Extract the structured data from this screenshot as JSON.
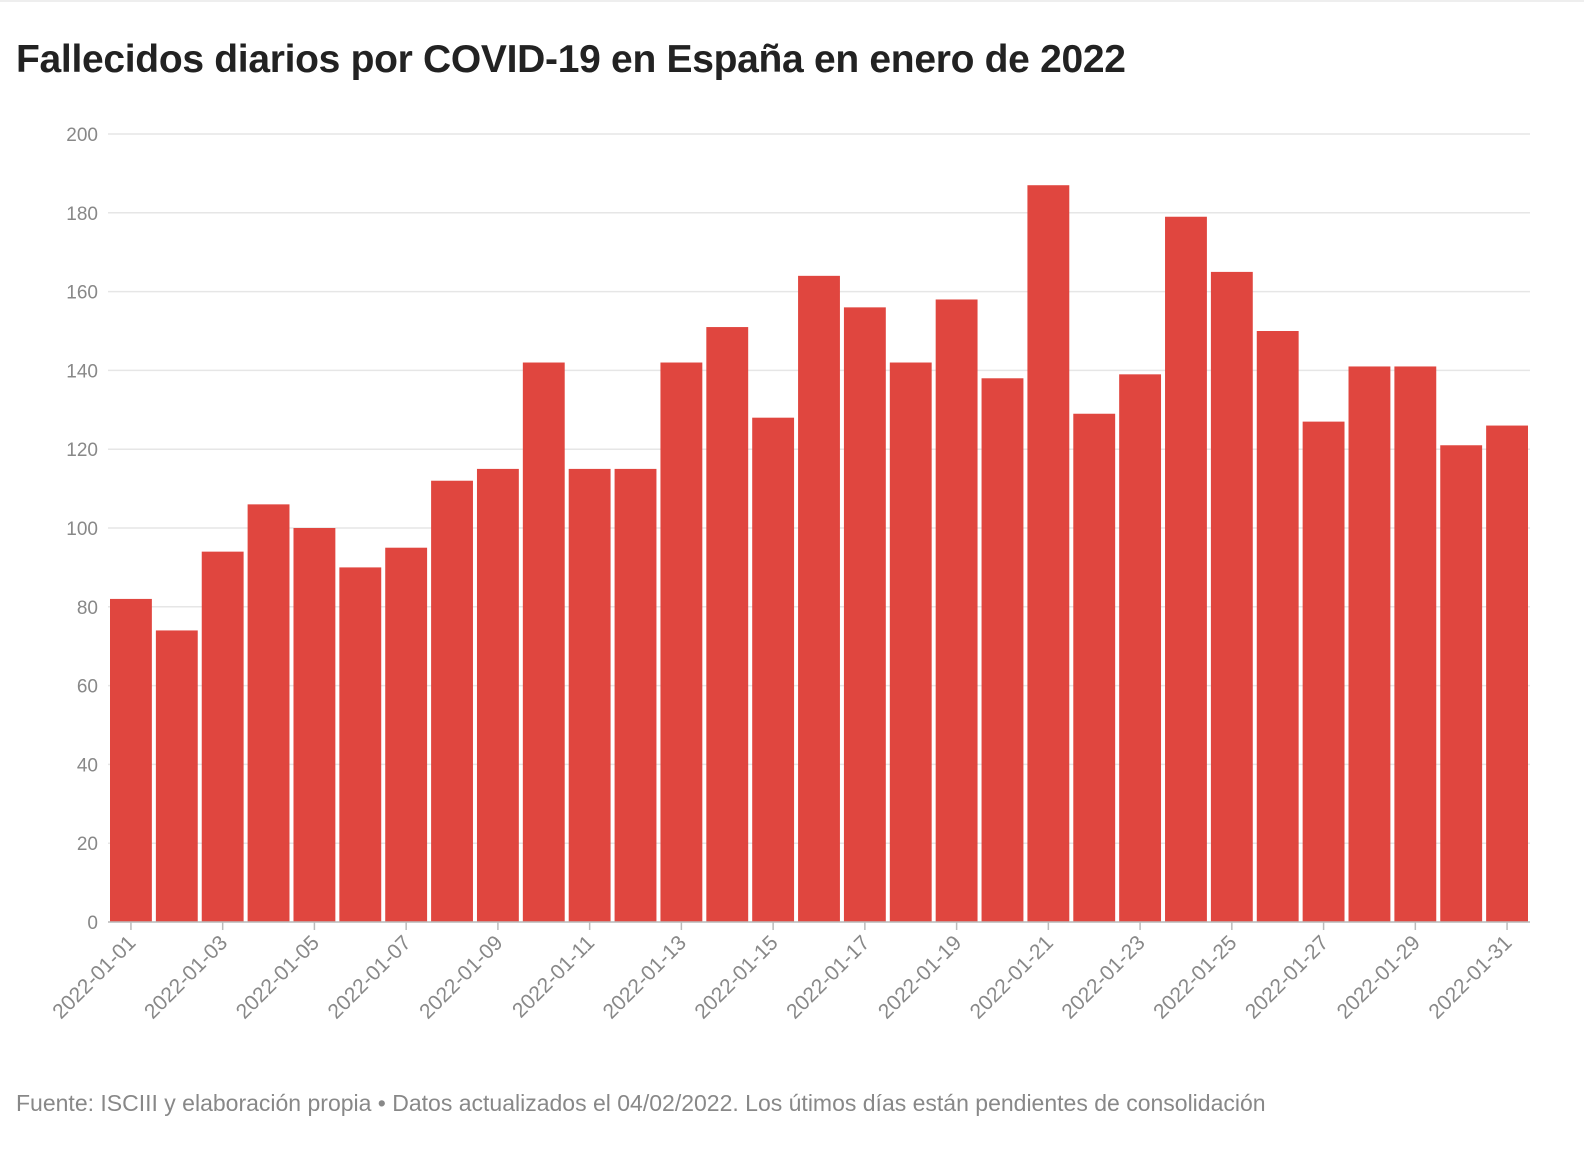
{
  "title": "Fallecidos diarios por COVID-19 en España en enero de 2022",
  "footer": "Fuente: ISCIII y elaboración propia • Datos actualizados el 04/02/2022. Los útimos días están pendientes de consolidación",
  "colors": {
    "bar": "#e0463f",
    "grid": "#e6e6e6",
    "tick": "#888888",
    "axis": "#bbbbbb"
  },
  "chart_data": {
    "type": "bar",
    "categories": [
      "2022-01-01",
      "2022-01-02",
      "2022-01-03",
      "2022-01-04",
      "2022-01-05",
      "2022-01-06",
      "2022-01-07",
      "2022-01-08",
      "2022-01-09",
      "2022-01-10",
      "2022-01-11",
      "2022-01-12",
      "2022-01-13",
      "2022-01-14",
      "2022-01-15",
      "2022-01-16",
      "2022-01-17",
      "2022-01-18",
      "2022-01-19",
      "2022-01-20",
      "2022-01-21",
      "2022-01-22",
      "2022-01-23",
      "2022-01-24",
      "2022-01-25",
      "2022-01-26",
      "2022-01-27",
      "2022-01-28",
      "2022-01-29",
      "2022-01-30",
      "2022-01-31"
    ],
    "values": [
      82,
      74,
      94,
      106,
      100,
      90,
      95,
      112,
      115,
      142,
      115,
      115,
      142,
      151,
      128,
      164,
      156,
      142,
      158,
      138,
      187,
      129,
      139,
      179,
      165,
      150,
      127,
      141,
      141,
      121,
      126
    ],
    "x_tick_labels": [
      "2022-01-01",
      "2022-01-03",
      "2022-01-05",
      "2022-01-07",
      "2022-01-09",
      "2022-01-11",
      "2022-01-13",
      "2022-01-15",
      "2022-01-17",
      "2022-01-19",
      "2022-01-21",
      "2022-01-23",
      "2022-01-25",
      "2022-01-27",
      "2022-01-29",
      "2022-01-31"
    ],
    "y_ticks": [
      0,
      20,
      40,
      60,
      80,
      100,
      120,
      140,
      160,
      180,
      200
    ],
    "ylim": [
      0,
      200
    ],
    "grid": true,
    "legend": "none"
  }
}
